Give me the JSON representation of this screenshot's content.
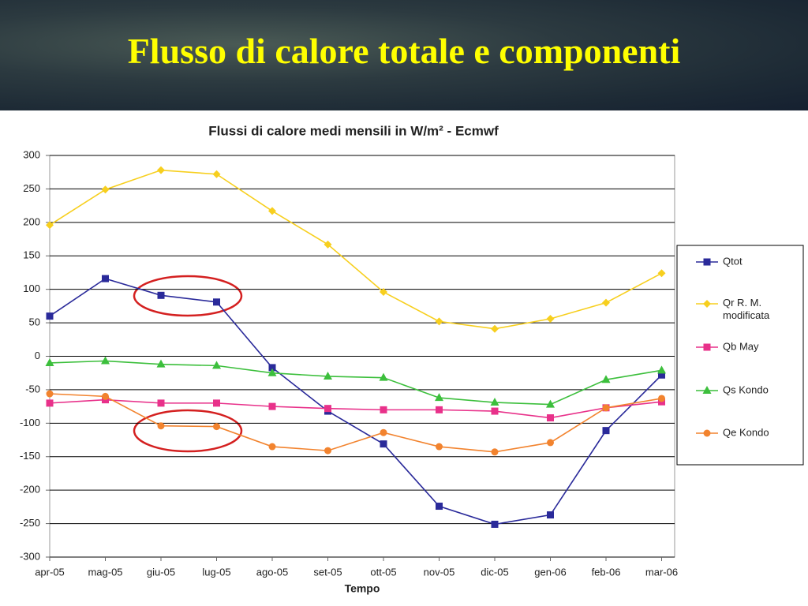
{
  "header": {
    "title": "Flusso di calore totale e componenti"
  },
  "chart_data": {
    "type": "line",
    "title": "Flussi di calore medi mensili in W/m² - Ecmwf",
    "x_label": "Tempo",
    "categories": [
      "apr-05",
      "mag-05",
      "giu-05",
      "lug-05",
      "ago-05",
      "set-05",
      "ott-05",
      "nov-05",
      "dic-05",
      "gen-06",
      "feb-06",
      "mar-06"
    ],
    "ylim": [
      -300,
      300
    ],
    "yticks": [
      -300,
      -250,
      -200,
      -150,
      -100,
      -50,
      0,
      50,
      100,
      150,
      200,
      250,
      300
    ],
    "grid": true,
    "legend": "right",
    "series": [
      {
        "name": "Qtot",
        "color": "#2a2a9a",
        "marker": "square",
        "values": [
          60,
          116,
          91,
          81,
          -17,
          -82,
          -131,
          -224,
          -251,
          -237,
          -111,
          -28
        ]
      },
      {
        "name": "Qr R. M. modificata",
        "color": "#f7cf1e",
        "marker": "diamond",
        "values": [
          196,
          249,
          278,
          272,
          217,
          167,
          96,
          52,
          41,
          56,
          80,
          124
        ]
      },
      {
        "name": "Qb May",
        "color": "#e8318a",
        "marker": "square",
        "values": [
          -70,
          -65,
          -70,
          -70,
          -75,
          -78,
          -80,
          -80,
          -82,
          -92,
          -77,
          -68
        ]
      },
      {
        "name": "Qs Kondo",
        "color": "#3cbf3c",
        "marker": "triangle",
        "values": [
          -10,
          -7,
          -12,
          -14,
          -25,
          -30,
          -32,
          -62,
          -69,
          -72,
          -35,
          -21
        ]
      },
      {
        "name": "Qe Kondo",
        "color": "#f2832e",
        "marker": "circle",
        "values": [
          -56,
          -60,
          -104,
          -105,
          -135,
          -141,
          -114,
          -135,
          -143,
          -129,
          -77,
          -63
        ]
      }
    ]
  }
}
